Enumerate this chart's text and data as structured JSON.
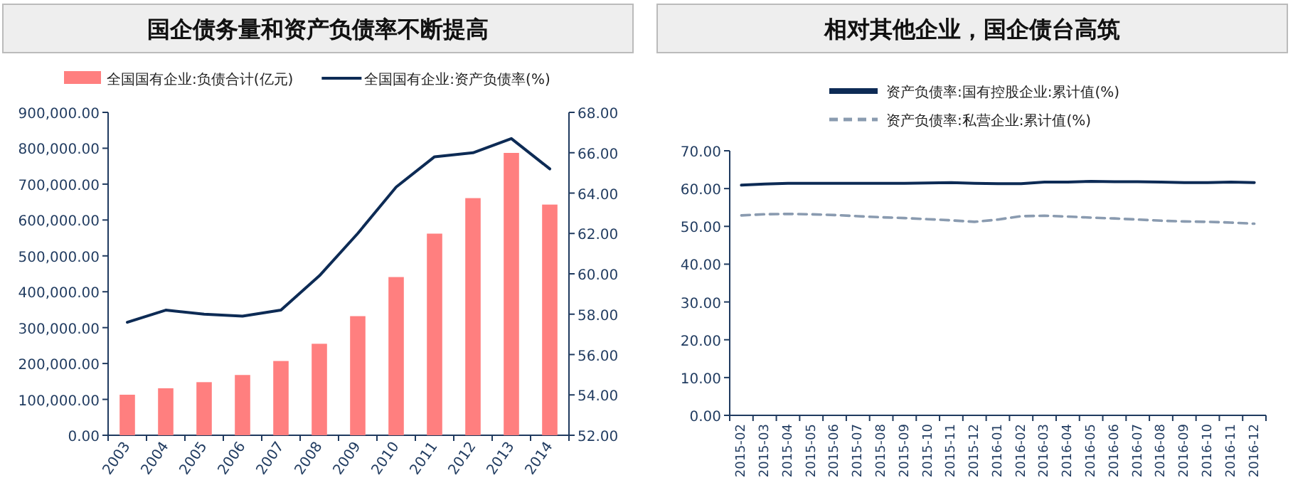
{
  "chart_data": [
    {
      "type": "bar",
      "title": "国企债务量和资产负债率不断提高",
      "categories": [
        "2003",
        "2004",
        "2005",
        "2006",
        "2007",
        "2008",
        "2009",
        "2010",
        "2011",
        "2012",
        "2013",
        "2014"
      ],
      "series": [
        {
          "name": "全国国有企业:负债合计(亿元)",
          "type": "bar",
          "color": "#ff7f7f",
          "values": [
            113000,
            131000,
            148000,
            168000,
            207000,
            255000,
            332000,
            441000,
            562000,
            661000,
            787000,
            643000
          ]
        },
        {
          "name": "全国国有企业:资产负债率(%)",
          "type": "line",
          "axis": "y2",
          "color": "#0d2b55",
          "values": [
            57.6,
            58.2,
            58.0,
            57.9,
            58.2,
            59.9,
            62.0,
            64.3,
            65.8,
            66.0,
            66.7,
            65.2
          ]
        }
      ],
      "ylim": [
        0,
        900000
      ],
      "yticks": [
        {
          "value": 0,
          "label": "0.00"
        },
        {
          "value": 100000,
          "label": "100,000.00"
        },
        {
          "value": 200000,
          "label": "200,000.00"
        },
        {
          "value": 300000,
          "label": "300,000.00"
        },
        {
          "value": 400000,
          "label": "400,000.00"
        },
        {
          "value": 500000,
          "label": "500,000.00"
        },
        {
          "value": 600000,
          "label": "600,000.00"
        },
        {
          "value": 700000,
          "label": "700,000.00"
        },
        {
          "value": 800000,
          "label": "800,000.00"
        },
        {
          "value": 900000,
          "label": "900,000.00"
        }
      ],
      "y2lim": [
        52,
        68
      ],
      "y2ticks": [
        {
          "value": 52,
          "label": "52.00"
        },
        {
          "value": 54,
          "label": "54.00"
        },
        {
          "value": 56,
          "label": "56.00"
        },
        {
          "value": 58,
          "label": "58.00"
        },
        {
          "value": 60,
          "label": "60.00"
        },
        {
          "value": 62,
          "label": "62.00"
        },
        {
          "value": 64,
          "label": "64.00"
        },
        {
          "value": 66,
          "label": "66.00"
        },
        {
          "value": 68,
          "label": "68.00"
        }
      ],
      "legend": "top"
    },
    {
      "type": "line",
      "title": "相对其他企业，国企债台高筑",
      "categories": [
        "2015-02",
        "2015-03",
        "2015-04",
        "2015-05",
        "2015-06",
        "2015-07",
        "2015-08",
        "2015-09",
        "2015-10",
        "2015-11",
        "2015-12",
        "2016-01",
        "2016-02",
        "2016-03",
        "2016-04",
        "2016-05",
        "2016-06",
        "2016-07",
        "2016-08",
        "2016-09",
        "2016-10",
        "2016-11",
        "2016-12"
      ],
      "series": [
        {
          "name": "资产负债率:国有控股企业:累计值(%)",
          "color": "#0d2b55",
          "line_style": "solid",
          "values": [
            60.9,
            61.2,
            61.4,
            61.4,
            61.4,
            61.4,
            61.4,
            61.4,
            61.5,
            61.6,
            61.4,
            61.3,
            61.3,
            61.7,
            61.7,
            61.9,
            61.8,
            61.8,
            61.7,
            61.6,
            61.6,
            61.7,
            61.6
          ]
        },
        {
          "name": "资产负债率:私营企业:累计值(%)",
          "color": "#8a9bb0",
          "line_style": "dashed",
          "values": [
            52.9,
            53.2,
            53.3,
            53.2,
            53.0,
            52.7,
            52.4,
            52.2,
            51.9,
            51.6,
            51.2,
            51.8,
            52.7,
            52.8,
            52.6,
            52.3,
            52.1,
            51.8,
            51.5,
            51.3,
            51.2,
            51.0,
            50.7
          ]
        }
      ],
      "ylim": [
        0,
        70
      ],
      "yticks": [
        {
          "value": 0,
          "label": "0.00"
        },
        {
          "value": 10,
          "label": "10.00"
        },
        {
          "value": 20,
          "label": "20.00"
        },
        {
          "value": 30,
          "label": "30.00"
        },
        {
          "value": 40,
          "label": "40.00"
        },
        {
          "value": 50,
          "label": "50.00"
        },
        {
          "value": 60,
          "label": "60.00"
        },
        {
          "value": 70,
          "label": "70.00"
        }
      ],
      "legend": "top"
    }
  ]
}
